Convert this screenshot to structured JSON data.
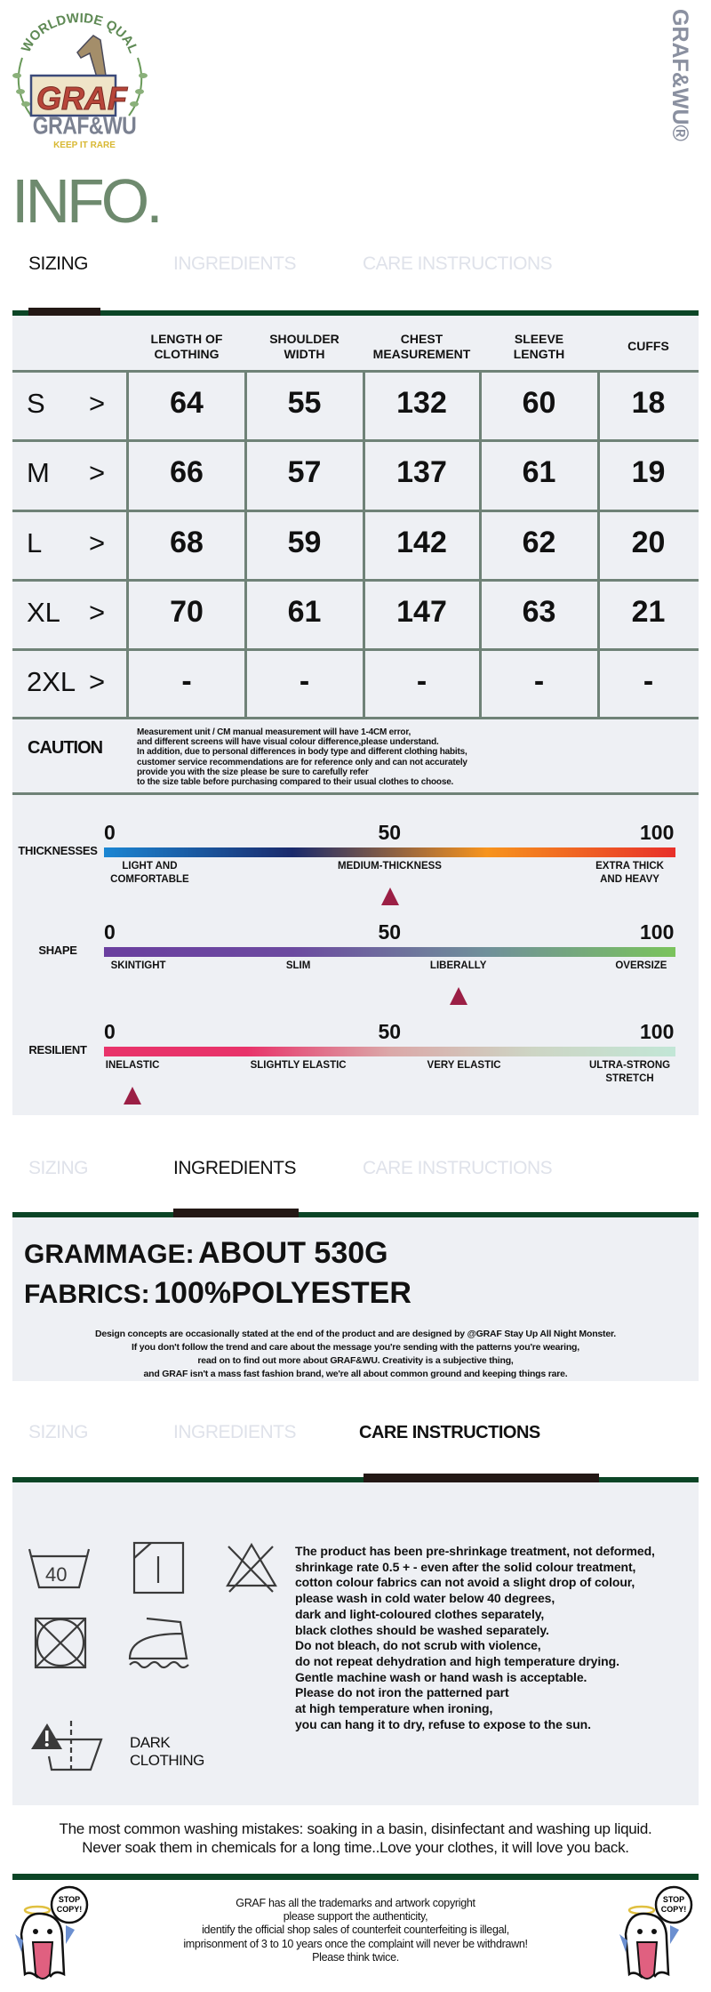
{
  "brand": {
    "arc_text": "WORLDWIDE QUALITY",
    "logo_word": "GRAF",
    "name": "GRAF&WU",
    "tagline": "KEEP IT RARE",
    "vertical_mark": "GRAF&WU®"
  },
  "title": "INFO.",
  "tabs": [
    "SIZING",
    "INGREDIENTS",
    "CARE INSTRUCTIONS"
  ],
  "colors": {
    "accent_green": "#0b4526",
    "title_green": "#6e8a6e",
    "panel": "#eef0f4",
    "marker": "#9b1f45",
    "grid": "#6f8277"
  },
  "size_table": {
    "headers": [
      [
        "LENGTH OF",
        "CLOTHING"
      ],
      [
        "SHOULDER",
        "WIDTH"
      ],
      [
        "CHEST",
        "MEASUREMENT"
      ],
      [
        "SLEEVE",
        "LENGTH"
      ],
      [
        "CUFFS",
        ""
      ]
    ],
    "arrow": ">",
    "rows": [
      {
        "size": "S",
        "values": [
          "64",
          "55",
          "132",
          "60",
          "18"
        ]
      },
      {
        "size": "M",
        "values": [
          "66",
          "57",
          "137",
          "61",
          "19"
        ]
      },
      {
        "size": "L",
        "values": [
          "68",
          "59",
          "142",
          "62",
          "20"
        ]
      },
      {
        "size": "XL",
        "values": [
          "70",
          "61",
          "147",
          "63",
          "21"
        ]
      },
      {
        "size": "2XL",
        "values": [
          "-",
          "-",
          "-",
          "-",
          "-"
        ]
      }
    ]
  },
  "caution": {
    "label": "CAUTION",
    "lines": [
      "Measurement unit / CM manual measurement will have 1-4CM error,",
      "and different screens will have visual colour difference,please understand.",
      "In addition, due to personal differences in body type and different clothing habits,",
      "customer service recommendations are for reference only and can not accurately",
      "provide you with the size please be sure to carefully refer",
      "to the size table before purchasing compared to their usual clothes to choose."
    ]
  },
  "scales": [
    {
      "label": "THICKNESSES",
      "ticks": [
        "0",
        "50",
        "100"
      ],
      "value": 50,
      "gradient": [
        "#1b86d3",
        "#1a2a6c",
        "#f7941d",
        "#e8302a"
      ],
      "stops": [
        {
          "pos": 8,
          "lines": [
            "LIGHT AND",
            "COMFORTABLE"
          ]
        },
        {
          "pos": 50,
          "lines": [
            "MEDIUM-THICKNESS"
          ]
        },
        {
          "pos": 92,
          "lines": [
            "EXTRA THICK",
            "AND HEAVY"
          ]
        }
      ]
    },
    {
      "label": "SHAPE",
      "ticks": [
        "0",
        "50",
        "100"
      ],
      "value": 62,
      "gradient": [
        "#6a3f9f",
        "#6c4aa0",
        "#70909a",
        "#7ac35c"
      ],
      "stops": [
        {
          "pos": 6,
          "lines": [
            "SKINTIGHT"
          ]
        },
        {
          "pos": 34,
          "lines": [
            "SLIM"
          ]
        },
        {
          "pos": 62,
          "lines": [
            "LIBERALLY"
          ]
        },
        {
          "pos": 94,
          "lines": [
            "OVERSIZE"
          ]
        }
      ]
    },
    {
      "label": "RESILIENT",
      "ticks": [
        "0",
        "50",
        "100"
      ],
      "value": 5,
      "gradient": [
        "#e8336a",
        "#e8336a",
        "#dba8a8",
        "#cdd5c4",
        "#c2e6d6"
      ],
      "stops": [
        {
          "pos": 5,
          "lines": [
            "INELASTIC"
          ]
        },
        {
          "pos": 34,
          "lines": [
            "SLIGHTLY ELASTIC"
          ]
        },
        {
          "pos": 63,
          "lines": [
            "VERY ELASTIC"
          ]
        },
        {
          "pos": 92,
          "lines": [
            "ULTRA-STRONG",
            "STRETCH"
          ]
        }
      ]
    }
  ],
  "ingredients": {
    "grammage_label": "GRAMMAGE:",
    "grammage_value": "ABOUT 530G",
    "fabrics_label": "FABRICS:",
    "fabrics_value": "100%POLYESTER",
    "notes": [
      "Design concepts are occasionally stated at the end of the product and are designed by @GRAF Stay Up All Night Monster.",
      "If you don't follow the trend and care about the message you're sending with the patterns you're wearing,",
      "read on to find out more about GRAF&WU. Creativity is a subjective thing,",
      "and GRAF isn't a mass fast fashion brand, we're all about common ground and keeping things rare."
    ]
  },
  "care": {
    "icons": [
      "wash-40-icon",
      "tumble-dry-flat-icon",
      "no-bleach-icon",
      "no-tumble-dry-icon",
      "iron-steam-icon",
      "dark-clothing-wash-warning-icon"
    ],
    "wash_temp": "40",
    "dark_label": [
      "DARK",
      "CLOTHING"
    ],
    "lines": [
      "The product has been pre-shrinkage treatment, not deformed,",
      "shrinkage rate 0.5 + - even after the solid colour treatment,",
      "cotton colour fabrics can not avoid a slight drop of colour,",
      "please wash in cold water below 40 degrees,",
      "dark and light-coloured clothes separately,",
      "black clothes should be washed separately.",
      "Do not bleach, do not scrub with violence,",
      "do not repeat dehydration and high temperature drying.",
      "Gentle machine wash or hand wash is acceptable.",
      "Please do not iron the patterned part",
      "at high temperature when ironing,",
      "you can hang it to dry, refuse to expose to the sun."
    ]
  },
  "mistakes": [
    "The most common washing mistakes: soaking in a basin, disinfectant and washing up liquid.",
    "Never soak them in chemicals for a long time..Love your clothes, it will love you back."
  ],
  "footer": {
    "bubble": [
      "STOP",
      "COPY!"
    ],
    "lines": [
      "GRAF has all the trademarks and artwork copyright",
      "please support the authenticity,",
      "identify the official shop sales of counterfeit counterfeiting is illegal,",
      "imprisonment of 3 to 10 years once the complaint will never be withdrawn!",
      "Please think twice."
    ]
  }
}
